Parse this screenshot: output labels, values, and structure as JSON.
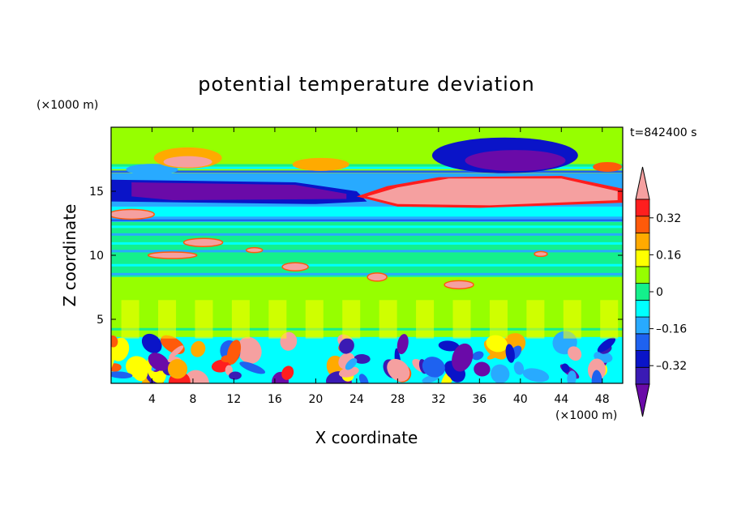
{
  "chart_data": {
    "type": "heatmap",
    "title": "potential temperature deviation",
    "time_label": "t=842400 s",
    "xlabel": "X coordinate",
    "ylabel": "Z coordinate",
    "x_unit": "(×1000 m)",
    "y_unit": "(×1000 m)",
    "xlim": [
      0,
      50
    ],
    "ylim": [
      0,
      20
    ],
    "x_ticks": [
      4,
      8,
      12,
      16,
      20,
      24,
      28,
      32,
      36,
      40,
      44,
      48
    ],
    "y_ticks": [
      5,
      10,
      15
    ],
    "colorbar": {
      "levels": [
        -0.4,
        -0.32,
        -0.24,
        -0.16,
        -0.08,
        0,
        0.08,
        0.16,
        0.24,
        0.32,
        0.4
      ],
      "tick_labels": [
        "0.32",
        "0.16",
        "0",
        "–0.16",
        "–0.32"
      ],
      "tick_values": [
        0.32,
        0.16,
        0,
        -0.16,
        -0.32
      ],
      "colors": [
        "#6a0aa8",
        "#3a1ab4",
        "#0a14c8",
        "#1e62f0",
        "#28aaff",
        "#00ffff",
        "#14f08c",
        "#96ff00",
        "#ffff00",
        "#ffaa00",
        "#ff5a0a",
        "#ff1e1e",
        "#f5a0a0"
      ]
    },
    "field_regions": [
      {
        "x": [
          0,
          50
        ],
        "z": [
          0,
          3.5
        ],
        "value": "mixed -0.4 to 0.4 turbulent"
      },
      {
        "x": [
          0,
          50
        ],
        "z": [
          3.5,
          8
        ],
        "value": 0.04
      },
      {
        "x": [
          0,
          50
        ],
        "z": [
          8,
          12
        ],
        "value": 0
      },
      {
        "x": [
          0,
          24
        ],
        "z": [
          14,
          16
        ],
        "value": -0.4
      },
      {
        "x": [
          26,
          50
        ],
        "z": [
          13.8,
          16.2
        ],
        "value": 0.4
      },
      {
        "x": [
          34,
          44
        ],
        "z": [
          17,
          19
        ],
        "value": -0.4
      },
      {
        "x": [
          2,
          10
        ],
        "z": [
          16.5,
          18
        ],
        "value": 0.3
      },
      {
        "x": [
          0,
          50
        ],
        "z": [
          18,
          20
        ],
        "value": 0.08
      }
    ]
  }
}
